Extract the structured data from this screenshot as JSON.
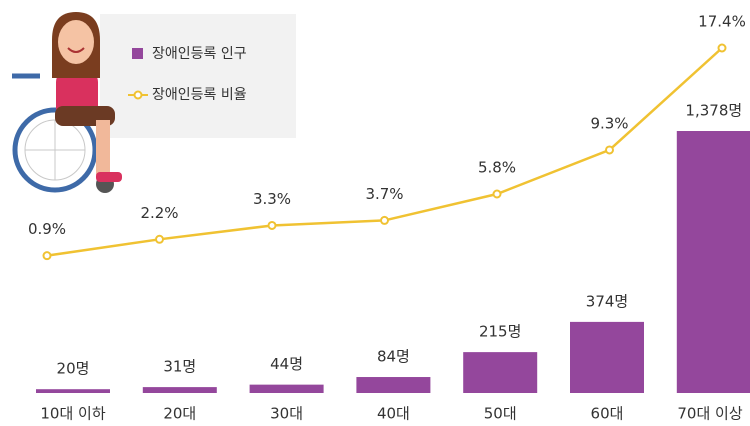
{
  "chart_data": {
    "type": "combo",
    "categories": [
      "10대 이하",
      "20대",
      "30대",
      "40대",
      "50대",
      "60대",
      "70대 이상"
    ],
    "series": [
      {
        "name": "장애인등록 인구",
        "type": "bar",
        "color": "#94479c",
        "values": [
          20,
          31,
          44,
          84,
          215,
          374,
          1378
        ],
        "value_labels": [
          "20명",
          "31명",
          "44명",
          "84명",
          "215명",
          "374명",
          "1,378명"
        ]
      },
      {
        "name": "장애인등록 비율",
        "type": "line",
        "color": "#f0c232",
        "values": [
          0.9,
          2.2,
          3.3,
          3.7,
          5.8,
          9.3,
          17.4
        ],
        "value_labels": [
          "0.9%",
          "2.2%",
          "3.3%",
          "3.7%",
          "5.8%",
          "9.3%",
          "17.4%"
        ]
      }
    ],
    "legend": "top-left"
  }
}
